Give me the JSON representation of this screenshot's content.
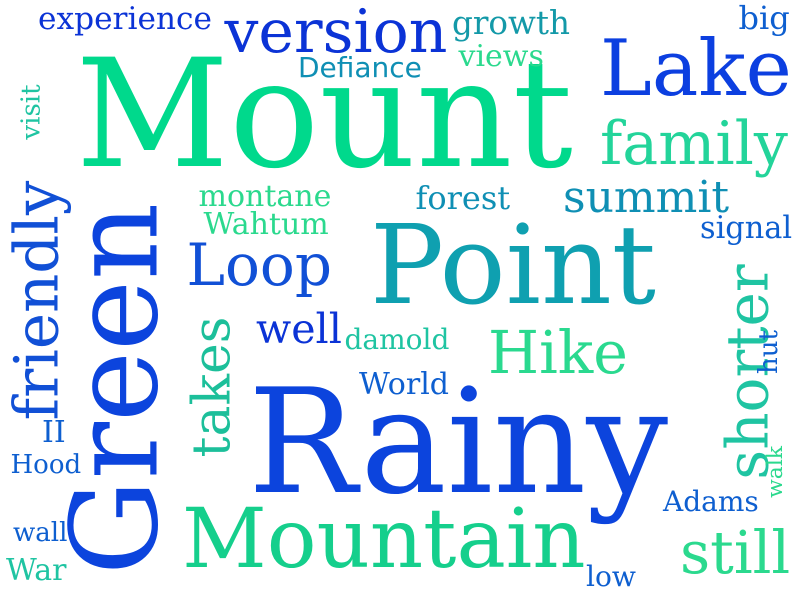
{
  "words": [
    {
      "id": "mount",
      "text": "Mount",
      "color": "#00d98c"
    },
    {
      "id": "rainy",
      "text": "Rainy",
      "color": "#0c44dd"
    },
    {
      "id": "point",
      "text": "Point",
      "color": "#0fa0b0"
    },
    {
      "id": "green",
      "text": "Green",
      "color": "#0c44dd"
    },
    {
      "id": "mountain",
      "text": "Mountain",
      "color": "#15cf8c"
    },
    {
      "id": "lake",
      "text": "Lake",
      "color": "#0c3fe0"
    },
    {
      "id": "version",
      "text": "version",
      "color": "#0b33d6"
    },
    {
      "id": "family",
      "text": "family",
      "color": "#23d49a"
    },
    {
      "id": "friendly",
      "text": "friendly",
      "color": "#1150d6"
    },
    {
      "id": "loop",
      "text": "Loop",
      "color": "#1150d6"
    },
    {
      "id": "hike",
      "text": "Hike",
      "color": "#2ad98f"
    },
    {
      "id": "takes",
      "text": "takes",
      "color": "#1cbf9a"
    },
    {
      "id": "shorter",
      "text": "shorter",
      "color": "#1fc4a2"
    },
    {
      "id": "still",
      "text": "still",
      "color": "#2bd98e"
    },
    {
      "id": "summit",
      "text": "summit",
      "color": "#0f8fb4"
    },
    {
      "id": "well",
      "text": "well",
      "color": "#0b33d6"
    },
    {
      "id": "experience",
      "text": "experience",
      "color": "#0b33d6"
    },
    {
      "id": "growth",
      "text": "growth",
      "color": "#1399a8"
    },
    {
      "id": "big",
      "text": "big",
      "color": "#0e5fd0"
    },
    {
      "id": "views",
      "text": "views",
      "color": "#2bd98e"
    },
    {
      "id": "defiance",
      "text": "Defiance",
      "color": "#0f8fb4"
    },
    {
      "id": "visit",
      "text": "visit",
      "color": "#1fc4a2"
    },
    {
      "id": "montane",
      "text": "montane",
      "color": "#2bd98e"
    },
    {
      "id": "forest",
      "text": "forest",
      "color": "#0f8fb4"
    },
    {
      "id": "wahtum",
      "text": "Wahtum",
      "color": "#2bd98e"
    },
    {
      "id": "signal",
      "text": "signal",
      "color": "#0e5fd0"
    },
    {
      "id": "damold",
      "text": "damold",
      "color": "#1fc4a2"
    },
    {
      "id": "hut",
      "text": "hut",
      "color": "#0e5fd0"
    },
    {
      "id": "world",
      "text": "World",
      "color": "#0e5fd0"
    },
    {
      "id": "ii",
      "text": "II",
      "color": "#0e5fd0"
    },
    {
      "id": "hood",
      "text": "Hood",
      "color": "#0e5fd0"
    },
    {
      "id": "walk",
      "text": "walk",
      "color": "#2bd98e"
    },
    {
      "id": "adams",
      "text": "Adams",
      "color": "#0e5fd0"
    },
    {
      "id": "wall",
      "text": "wall",
      "color": "#0e5fd0"
    },
    {
      "id": "war",
      "text": "War",
      "color": "#1fc4a2"
    },
    {
      "id": "low",
      "text": "low",
      "color": "#0e5fd0"
    }
  ]
}
